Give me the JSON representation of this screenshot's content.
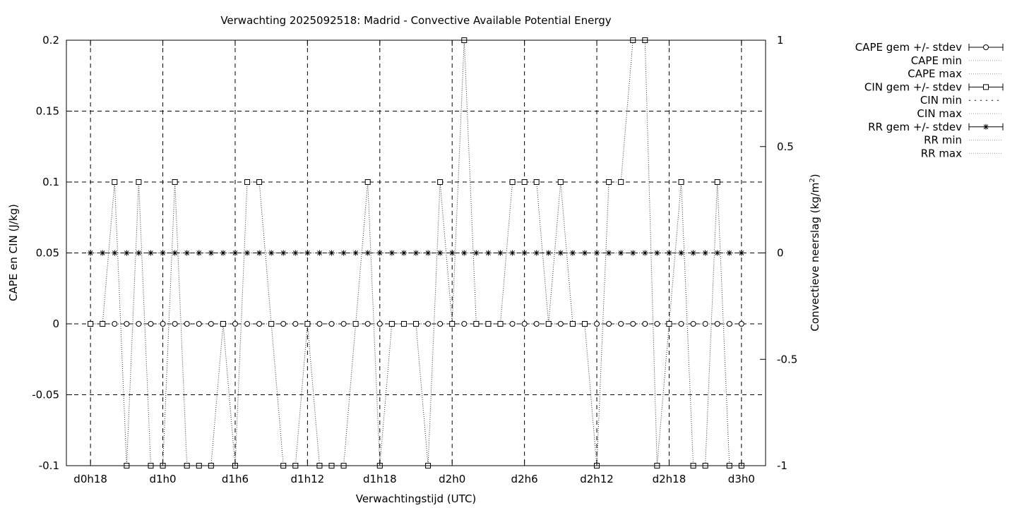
{
  "chart_data": {
    "type": "line",
    "title": "Verwachting 2025092518: Madrid - Convective Available Potential Energy",
    "xlabel": "Verwachtingstijd (UTC)",
    "ylabel": "CAPE en CIN (J/kg)",
    "y2label": "Convectieve neerslag (kg/m",
    "y2label_sup": "2",
    "y2label_end": ")",
    "x_ticks": [
      "d0h18",
      "d1h0",
      "d1h6",
      "d1h12",
      "d1h18",
      "d2h0",
      "d2h6",
      "d2h12",
      "d2h18",
      "d3h0"
    ],
    "x_tick_hours": [
      18,
      24,
      30,
      36,
      42,
      48,
      54,
      60,
      66,
      72
    ],
    "x_range_hours": [
      16,
      74
    ],
    "ylim": [
      -0.1,
      0.2
    ],
    "y_ticks": [
      "-0.1",
      "-0.05",
      "0",
      "0.05",
      "0.1",
      "0.15",
      "0.2"
    ],
    "y_tick_values": [
      -0.1,
      -0.05,
      0,
      0.05,
      0.1,
      0.15,
      0.2
    ],
    "y2lim": [
      -1,
      1
    ],
    "y2_ticks": [
      "-1",
      "-0.5",
      "0",
      "0.5",
      "1"
    ],
    "y2_tick_values": [
      -1,
      -0.5,
      0,
      0.5,
      1
    ],
    "grid": true,
    "legend_position": "right",
    "legend": [
      {
        "label": "CAPE gem +/- stdev",
        "style": "errorbar-circle"
      },
      {
        "label": "CAPE min",
        "style": "dotted"
      },
      {
        "label": "CAPE max",
        "style": "dotted"
      },
      {
        "label": "CIN gem +/- stdev",
        "style": "errorbar-square"
      },
      {
        "label": "CIN min",
        "style": "dotted-coarse"
      },
      {
        "label": "CIN max",
        "style": "dotted"
      },
      {
        "label": "RR gem +/- stdev",
        "style": "errorbar-star"
      },
      {
        "label": "RR min",
        "style": "dotted"
      },
      {
        "label": "RR max",
        "style": "dotted"
      }
    ],
    "x_hours": [
      18,
      19,
      20,
      21,
      22,
      23,
      24,
      25,
      26,
      27,
      28,
      29,
      30,
      31,
      32,
      33,
      34,
      35,
      36,
      37,
      38,
      39,
      40,
      41,
      42,
      43,
      44,
      45,
      46,
      47,
      48,
      49,
      50,
      51,
      52,
      53,
      54,
      55,
      56,
      57,
      58,
      59,
      60,
      61,
      62,
      63,
      64,
      65,
      66,
      67,
      68,
      69,
      70,
      71,
      72
    ],
    "series": [
      {
        "name": "CAPE gem +/- stdev",
        "axis": "y1",
        "marker": "circle",
        "values": [
          0,
          0,
          0,
          0,
          0,
          0,
          0,
          0,
          0,
          0,
          0,
          0,
          0,
          0,
          0,
          0,
          0,
          0,
          0,
          0,
          0,
          0,
          0,
          0,
          0,
          0,
          0,
          0,
          0,
          0,
          0,
          0,
          0,
          0,
          0,
          0,
          0,
          0,
          0,
          0,
          0,
          0,
          0,
          0,
          0,
          0,
          0,
          0,
          0,
          0,
          0,
          0,
          0,
          0,
          0
        ]
      },
      {
        "name": "CIN gem +/- stdev",
        "axis": "y1",
        "marker": "square",
        "values": [
          0,
          0,
          0.1,
          -0.1,
          0.1,
          -0.1,
          -0.1,
          0.1,
          -0.1,
          -0.1,
          -0.1,
          0,
          -0.1,
          0.1,
          0.1,
          0,
          -0.1,
          -0.1,
          0,
          -0.1,
          -0.1,
          -0.1,
          0,
          0.1,
          -0.1,
          0,
          0,
          0,
          -0.1,
          0.1,
          0,
          0.2,
          0,
          0,
          0,
          0.1,
          0.1,
          0.1,
          0,
          0.1,
          0,
          0,
          -0.1,
          0.1,
          0.1,
          0.2,
          0.2,
          -0.1,
          0,
          0.1,
          -0.1,
          -0.1,
          0.1,
          -0.1,
          -0.1
        ]
      },
      {
        "name": "RR gem +/- stdev",
        "axis": "y2",
        "marker": "star",
        "values": [
          0,
          0,
          0,
          0,
          0,
          0,
          0,
          0,
          0,
          0,
          0,
          0,
          0,
          0,
          0,
          0,
          0,
          0,
          0,
          0,
          0,
          0,
          0,
          0,
          0,
          0,
          0,
          0,
          0,
          0,
          0,
          0,
          0,
          0,
          0,
          0,
          0,
          0,
          0,
          0,
          0,
          0,
          0,
          0,
          0,
          0,
          0,
          0,
          0,
          0,
          0,
          0,
          0,
          0,
          0
        ]
      }
    ]
  }
}
